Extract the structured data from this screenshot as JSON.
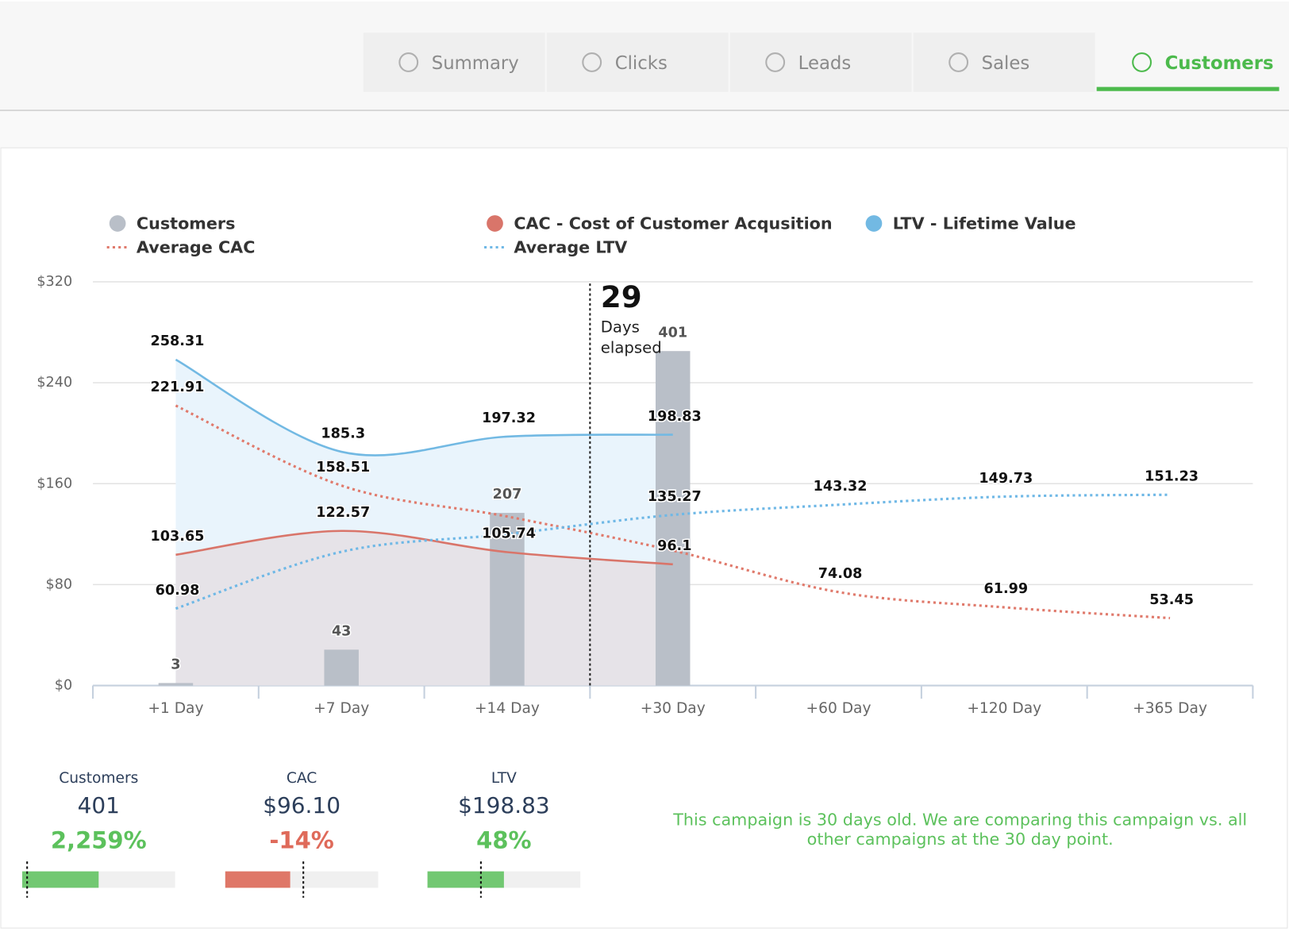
{
  "tabs": [
    {
      "label": "Summary",
      "active": false
    },
    {
      "label": "Clicks",
      "active": false
    },
    {
      "label": "Leads",
      "active": false
    },
    {
      "label": "Sales",
      "active": false
    },
    {
      "label": "Customers",
      "active": true
    }
  ],
  "chart_data": {
    "type": "combo",
    "categories": [
      "+1 Day",
      "+7 Day",
      "+14 Day",
      "+30 Day",
      "+60 Day",
      "+120 Day",
      "+365 Day"
    ],
    "ylim": [
      0,
      320
    ],
    "yticks": [
      {
        "value": 0,
        "label": "$0"
      },
      {
        "value": 80,
        "label": "$80"
      },
      {
        "value": 160,
        "label": "$160"
      },
      {
        "value": 240,
        "label": "$240"
      },
      {
        "value": 320,
        "label": "$320"
      }
    ],
    "y2lim": [
      0,
      484
    ],
    "grid": true,
    "annotation": {
      "number": 29,
      "lines": [
        "Days",
        "elapsed"
      ]
    },
    "series": [
      {
        "name": "Customers",
        "type": "bar",
        "axis": "y2",
        "color": "#b9bfc8",
        "values": [
          3,
          43,
          207,
          401,
          null,
          null,
          null
        ]
      },
      {
        "name": "CAC - Cost of Customer Acqusition",
        "type": "line",
        "style": "solid",
        "color": "#d9756a",
        "area_color": "#e6e3e8",
        "values": [
          103.65,
          122.57,
          105.74,
          96.1,
          null,
          null,
          null
        ]
      },
      {
        "name": "LTV - Lifetime Value",
        "type": "line",
        "style": "solid",
        "color": "#72b9e3",
        "area_color": "#e9f4fc",
        "values": [
          258.31,
          185.3,
          197.32,
          198.83,
          null,
          null,
          null
        ]
      },
      {
        "name": "Average CAC",
        "type": "line",
        "style": "dotted",
        "color": "#e07a6c",
        "values": [
          221.91,
          158.51,
          134,
          107,
          74.08,
          61.99,
          53.45
        ],
        "value_labels": [
          "221.91",
          "158.51",
          null,
          null,
          "74.08",
          "61.99",
          "53.45"
        ]
      },
      {
        "name": "Average LTV",
        "type": "line",
        "style": "dotted",
        "color": "#6fb8e6",
        "values": [
          60.98,
          106,
          120,
          135.27,
          143.32,
          149.73,
          151.23
        ],
        "value_labels": [
          "60.98",
          null,
          null,
          "135.27",
          "143.32",
          "149.73",
          "151.23"
        ]
      }
    ]
  },
  "stats": [
    {
      "label": "Customers",
      "value": "401",
      "change": "2,259%"
    },
    {
      "label": "CAC",
      "value": "$96.10",
      "change": "-14%"
    },
    {
      "label": "LTV",
      "value": "$198.83",
      "change": "48%"
    }
  ],
  "note": [
    "This campaign is 30 days old. We are comparing this campaign vs. all",
    "other campaigns at the 30 day point."
  ]
}
